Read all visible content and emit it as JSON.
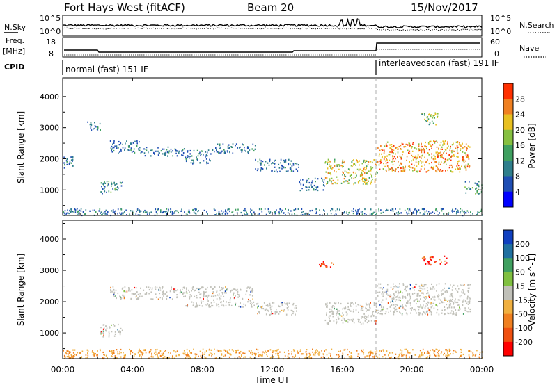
{
  "header": {
    "title": "Fort Hays West (fitACF)",
    "beam": "Beam 20",
    "date": "15/Nov/2017"
  },
  "panels": {
    "nsky_label": "N.Sky",
    "nsky_ticks": [
      "10^5",
      "10^0"
    ],
    "nsearch_label": "N.Search",
    "freq_label_1": "Freq.",
    "freq_label_2": "[MHz]",
    "freq_ticks": [
      "18",
      "8"
    ],
    "nave_label": "Nave",
    "nave_ticks": [
      "60",
      "0"
    ],
    "cpid_label": "CPID",
    "cpid_segments": [
      "normal (fast) 151 IF",
      "interleavedscan (fast) 191 IF"
    ]
  },
  "chart_data": [
    {
      "type": "heatmap",
      "name": "power",
      "ylabel": "Slant Range [km]",
      "yticks": [
        1000,
        2000,
        3000,
        4000
      ],
      "ylim": [
        180,
        4600
      ],
      "colorbar_label": "Power [dB]",
      "colorbar_ticks": [
        4,
        8,
        12,
        16,
        20,
        24,
        28
      ],
      "colorbar_range": [
        0,
        32
      ],
      "colors": [
        "#0000ff",
        "#1f4eb4",
        "#2f7f8c",
        "#3fa060",
        "#86c040",
        "#e8c020",
        "#f08020",
        "#ff3000"
      ],
      "bands": [
        {
          "x": [
            0.0,
            0.6
          ],
          "y": [
            1700,
            2100
          ],
          "v": 6
        },
        {
          "x": [
            1.4,
            2.2
          ],
          "y": [
            2900,
            3200
          ],
          "v": 6
        },
        {
          "x": [
            2.7,
            4.5
          ],
          "y": [
            2200,
            2600
          ],
          "v": 7
        },
        {
          "x": [
            4.5,
            7.0
          ],
          "y": [
            2100,
            2400
          ],
          "v": 6
        },
        {
          "x": [
            7.0,
            8.5
          ],
          "y": [
            1850,
            2300
          ],
          "v": 7
        },
        {
          "x": [
            8.5,
            11.0
          ],
          "y": [
            2200,
            2500
          ],
          "v": 6
        },
        {
          "x": [
            11.0,
            13.5
          ],
          "y": [
            1600,
            2000
          ],
          "v": 6
        },
        {
          "x": [
            13.5,
            15.0
          ],
          "y": [
            1000,
            1400
          ],
          "v": 6
        },
        {
          "x": [
            15.0,
            18.0
          ],
          "y": [
            1200,
            2000
          ],
          "v": 20
        },
        {
          "x": [
            18.0,
            23.3
          ],
          "y": [
            1600,
            2600
          ],
          "v": 22
        },
        {
          "x": [
            20.5,
            21.5
          ],
          "y": [
            3100,
            3500
          ],
          "v": 14
        },
        {
          "x": [
            2.1,
            3.4
          ],
          "y": [
            900,
            1300
          ],
          "v": 10
        },
        {
          "x": [
            23.0,
            24.0
          ],
          "y": [
            900,
            1300
          ],
          "v": 10
        },
        {
          "x": [
            0.0,
            24.0
          ],
          "y": [
            200,
            420
          ],
          "v": 6
        }
      ]
    },
    {
      "type": "heatmap",
      "name": "velocity",
      "ylabel": "Slant Range [km]",
      "yticks": [
        1000,
        2000,
        3000,
        4000
      ],
      "ylim": [
        180,
        4600
      ],
      "colorbar_label": "Velocity [m s^-1]",
      "colorbar_ticks": [
        200,
        100,
        50,
        15,
        -15,
        -50,
        -100,
        -200
      ],
      "colors": [
        "#1040c0",
        "#2070a0",
        "#40a060",
        "#80c040",
        "#c0c0b8",
        "#f0b040",
        "#f08020",
        "#f05010",
        "#ff0000"
      ],
      "bands": [
        {
          "x": [
            2.7,
            7.0
          ],
          "y": [
            2100,
            2500
          ],
          "v": "grey"
        },
        {
          "x": [
            7.0,
            11.0
          ],
          "y": [
            1850,
            2500
          ],
          "v": "grey"
        },
        {
          "x": [
            11.0,
            13.5
          ],
          "y": [
            1600,
            2000
          ],
          "v": "grey"
        },
        {
          "x": [
            15.0,
            18.0
          ],
          "y": [
            1300,
            2000
          ],
          "v": "grey"
        },
        {
          "x": [
            18.0,
            23.3
          ],
          "y": [
            1600,
            2600
          ],
          "v": "grey"
        },
        {
          "x": [
            2.1,
            3.4
          ],
          "y": [
            900,
            1300
          ],
          "v": "grey"
        },
        {
          "x": [
            20.5,
            22.0
          ],
          "y": [
            3200,
            3500
          ],
          "v": "red"
        },
        {
          "x": [
            14.5,
            15.5
          ],
          "y": [
            3100,
            3300
          ],
          "v": "red"
        },
        {
          "x": [
            0.0,
            24.0
          ],
          "y": [
            200,
            500
          ],
          "v": "orange"
        }
      ]
    }
  ],
  "xaxis": {
    "label": "Time UT",
    "ticks": [
      "00:00",
      "04:00",
      "08:00",
      "12:00",
      "16:00",
      "20:00",
      "00:00"
    ],
    "xlim": [
      0,
      24
    ]
  }
}
